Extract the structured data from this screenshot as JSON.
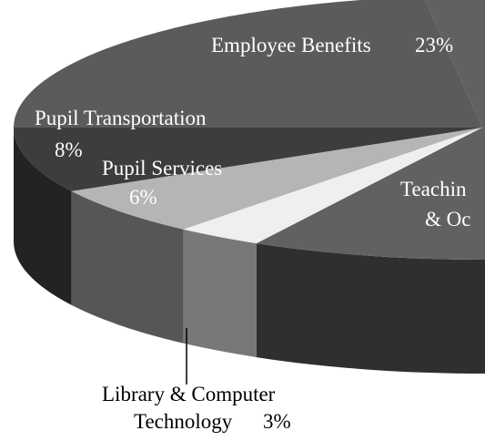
{
  "chart_data": {
    "type": "pie3d",
    "categories": [
      "Employee Benefits",
      "Pupil Transportation",
      "Pupil Services",
      "Library & Computer Technology",
      "Teachin & Oc"
    ],
    "values": [
      23,
      8,
      6,
      3,
      60
    ],
    "value_labels": [
      "23%",
      "8%",
      "6%",
      "3%",
      null
    ],
    "colors": [
      "#5b5b5b",
      "#3d3d3d",
      "#b5b5b5",
      "#efefef",
      "#616161"
    ],
    "side_colors": [
      "#444444",
      "#232323",
      "#565656",
      "#787878",
      "#2f2f2f"
    ]
  }
}
